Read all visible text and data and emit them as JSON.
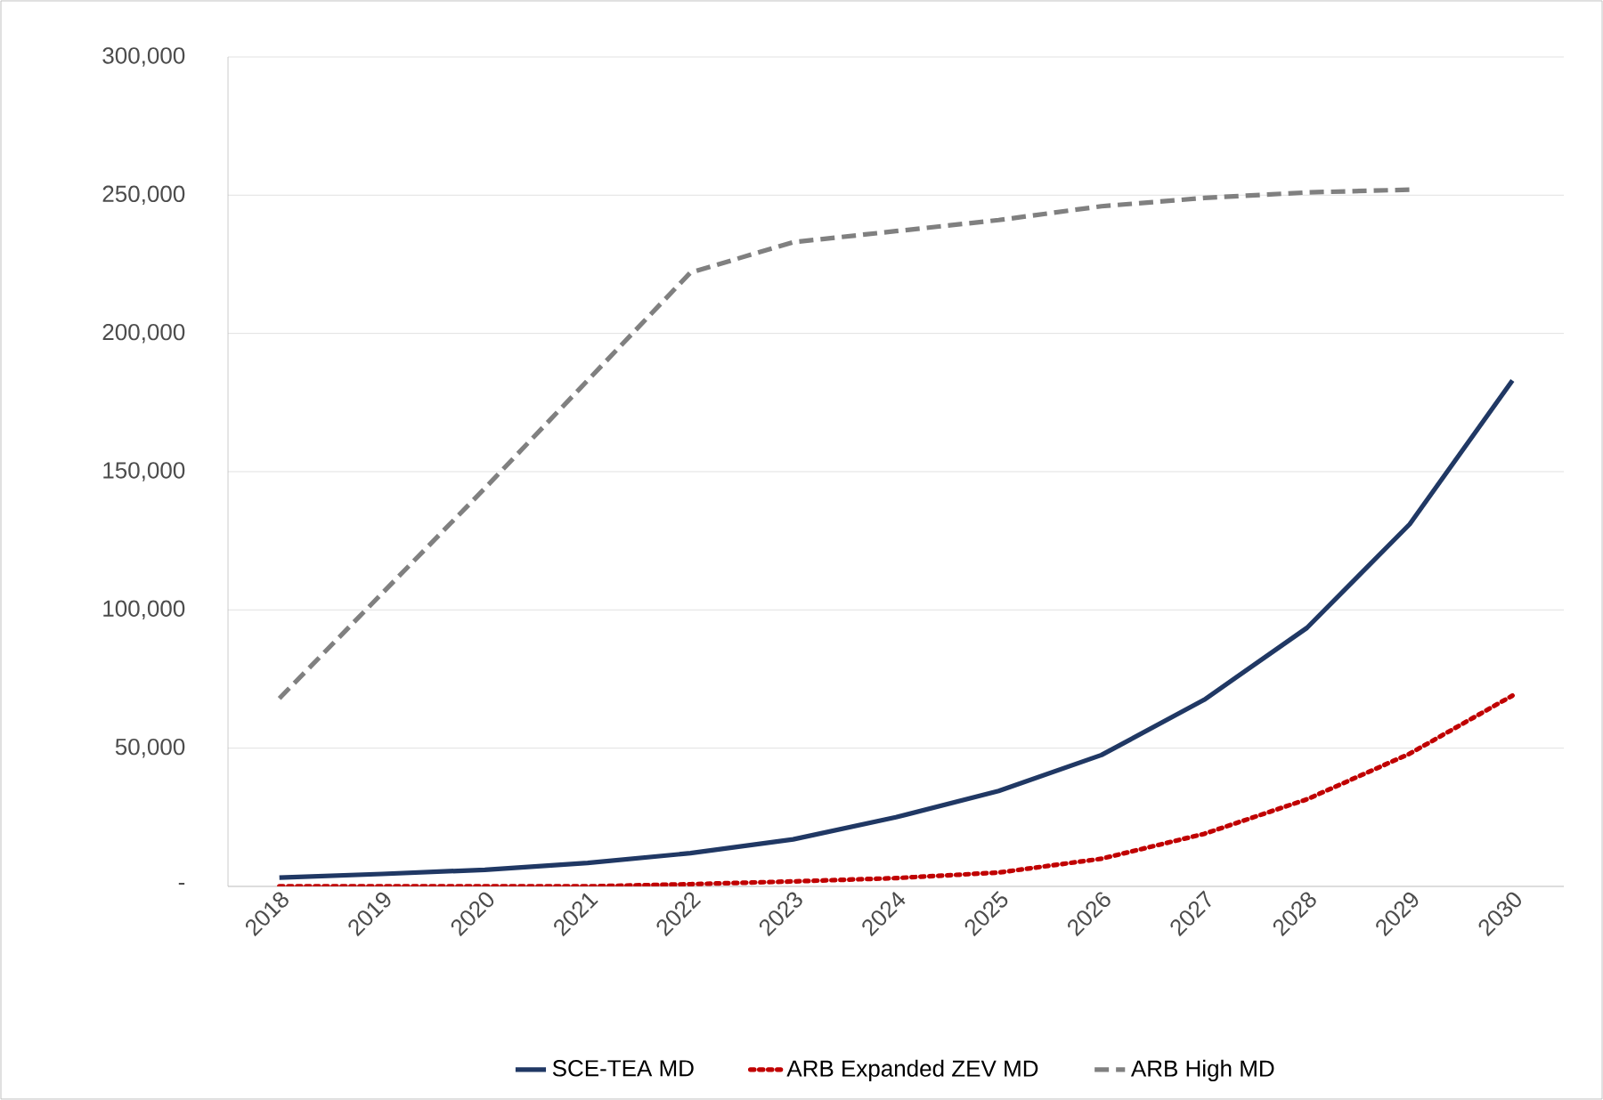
{
  "chart_data": {
    "type": "line",
    "categories": [
      "2018",
      "2019",
      "2020",
      "2021",
      "2022",
      "2023",
      "2024",
      "2025",
      "2026",
      "2027",
      "2028",
      "2029",
      "2030"
    ],
    "series": [
      {
        "name": "SCE-TEA MD",
        "color": "#203864",
        "line_style": "solid",
        "values": [
          3200,
          4500,
          6000,
          8500,
          12000,
          17000,
          25000,
          34500,
          47500,
          67500,
          93500,
          131000,
          183000
        ]
      },
      {
        "name": "ARB Expanded ZEV MD",
        "color": "#c00000",
        "line_style": "dotted",
        "values": [
          0,
          0,
          0,
          0,
          800,
          1800,
          3000,
          5000,
          10000,
          19000,
          31500,
          48000,
          69000
        ]
      },
      {
        "name": "ARB High MD",
        "color": "#808080",
        "line_style": "dashed",
        "values": [
          68000,
          106000,
          144000,
          183000,
          222000,
          233000,
          237000,
          241000,
          246000,
          249000,
          251000,
          252000,
          null
        ]
      }
    ],
    "ylim": [
      0,
      300000
    ],
    "yticks": [
      {
        "value": 0,
        "label": "-"
      },
      {
        "value": 50000,
        "label": "50,000"
      },
      {
        "value": 100000,
        "label": "100,000"
      },
      {
        "value": 150000,
        "label": "150,000"
      },
      {
        "value": 200000,
        "label": "200,000"
      },
      {
        "value": 250000,
        "label": "250,000"
      },
      {
        "value": 300000,
        "label": "300,000"
      }
    ],
    "grid": "y",
    "legend": "bottom",
    "marker": "none"
  }
}
